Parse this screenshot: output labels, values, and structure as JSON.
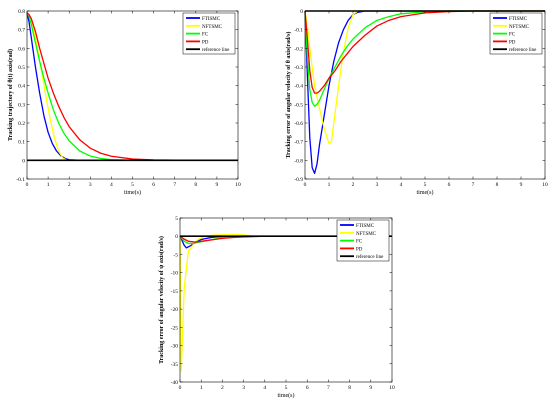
{
  "colors": {
    "FTISMC": "#0000ff",
    "NFTSMC": "#ffff00",
    "FC": "#00ff00",
    "PD": "#ff0000",
    "reference": "#000000"
  },
  "chart_data": [
    {
      "type": "line",
      "xlabel": "time(s)",
      "ylabel": "Tracking trajectory of θ(t) axis(rad)",
      "xlim": [
        0,
        10
      ],
      "ylim": [
        -0.1,
        0.8
      ],
      "xticks": [
        "0",
        "1",
        "2",
        "3",
        "4",
        "5",
        "6",
        "7",
        "8",
        "9",
        "10"
      ],
      "yticks": [
        "-0.1",
        "0",
        "0.1",
        "0.2",
        "0.3",
        "0.4",
        "0.5",
        "0.6",
        "0.7",
        "0.8"
      ],
      "legend": [
        "FTISMC",
        "NFTSMC",
        "FC",
        "PD",
        "reference line"
      ],
      "legend_position": "top-right",
      "series": [
        {
          "name": "FTISMC",
          "x": [
            0,
            0.1,
            0.2,
            0.4,
            0.6,
            0.8,
            1.0,
            1.2,
            1.4,
            1.6,
            1.8,
            2.0,
            2.5,
            3,
            10
          ],
          "y": [
            0.79,
            0.74,
            0.66,
            0.5,
            0.36,
            0.24,
            0.15,
            0.09,
            0.05,
            0.025,
            0.01,
            0.003,
            0,
            0,
            0
          ]
        },
        {
          "name": "NFTSMC",
          "x": [
            0,
            0.1,
            0.2,
            0.3,
            0.5,
            0.7,
            0.9,
            1.1,
            1.3,
            1.5,
            1.7,
            1.9,
            2.0,
            2.5,
            10
          ],
          "y": [
            0.79,
            0.78,
            0.75,
            0.71,
            0.6,
            0.47,
            0.34,
            0.22,
            0.12,
            0.05,
            0.012,
            0,
            0,
            0,
            0
          ]
        },
        {
          "name": "FC",
          "x": [
            0,
            0.1,
            0.2,
            0.4,
            0.6,
            0.8,
            1.0,
            1.25,
            1.5,
            1.75,
            2.0,
            2.5,
            3.0,
            3.5,
            4.0,
            5.0,
            6.0,
            10
          ],
          "y": [
            0.79,
            0.77,
            0.73,
            0.63,
            0.53,
            0.44,
            0.36,
            0.27,
            0.2,
            0.145,
            0.105,
            0.05,
            0.023,
            0.01,
            0.004,
            0.001,
            0,
            0
          ]
        },
        {
          "name": "PD",
          "x": [
            0,
            0.1,
            0.2,
            0.4,
            0.6,
            0.8,
            1.0,
            1.25,
            1.5,
            1.75,
            2.0,
            2.5,
            3.0,
            3.5,
            4.0,
            5.0,
            6.0,
            7.0,
            10
          ],
          "y": [
            0.79,
            0.78,
            0.76,
            0.69,
            0.6,
            0.52,
            0.44,
            0.36,
            0.29,
            0.23,
            0.18,
            0.11,
            0.065,
            0.038,
            0.022,
            0.007,
            0.002,
            0.001,
            0
          ]
        },
        {
          "name": "reference line",
          "x": [
            0,
            10
          ],
          "y": [
            0,
            0
          ]
        }
      ]
    },
    {
      "type": "line",
      "xlabel": "time(s)",
      "ylabel": "Tracking error of angular velocity of θ axis(rad/s)",
      "xlim": [
        0,
        10
      ],
      "ylim": [
        -0.9,
        0
      ],
      "xticks": [
        "0",
        "1",
        "2",
        "3",
        "4",
        "5",
        "6",
        "7",
        "8",
        "9",
        "10"
      ],
      "yticks": [
        "-0.9",
        "-0.8",
        "-0.7",
        "-0.6",
        "-0.5",
        "-0.4",
        "-0.3",
        "-0.2",
        "-0.1",
        "0"
      ],
      "legend": [
        "FTISMC",
        "NFTSMC",
        "FC",
        "PD",
        "reference line"
      ],
      "legend_position": "top-right",
      "series": [
        {
          "name": "FTISMC",
          "x": [
            0,
            0.1,
            0.2,
            0.3,
            0.4,
            0.5,
            0.6,
            0.8,
            1.0,
            1.2,
            1.4,
            1.6,
            1.8,
            2.0,
            2.2,
            2.5,
            3,
            10
          ],
          "y": [
            0,
            -0.35,
            -0.68,
            -0.84,
            -0.87,
            -0.82,
            -0.72,
            -0.56,
            -0.4,
            -0.27,
            -0.17,
            -0.1,
            -0.05,
            -0.02,
            -0.007,
            0,
            0,
            0
          ]
        },
        {
          "name": "NFTSMC",
          "x": [
            0,
            0.1,
            0.2,
            0.4,
            0.6,
            0.8,
            1.0,
            1.1,
            1.2,
            1.4,
            1.6,
            1.8,
            2.0,
            2.2,
            2.5,
            10
          ],
          "y": [
            0,
            -0.08,
            -0.2,
            -0.4,
            -0.52,
            -0.63,
            -0.71,
            -0.7,
            -0.6,
            -0.4,
            -0.22,
            -0.09,
            -0.02,
            0,
            0,
            0
          ]
        },
        {
          "name": "FC",
          "x": [
            0,
            0.1,
            0.2,
            0.3,
            0.4,
            0.5,
            0.6,
            0.8,
            1.0,
            1.25,
            1.5,
            1.75,
            2.0,
            2.5,
            3.0,
            3.5,
            4.0,
            5.0,
            6.0,
            10
          ],
          "y": [
            0,
            -0.25,
            -0.42,
            -0.49,
            -0.51,
            -0.5,
            -0.48,
            -0.42,
            -0.36,
            -0.3,
            -0.24,
            -0.19,
            -0.15,
            -0.09,
            -0.05,
            -0.03,
            -0.015,
            -0.004,
            0,
            0
          ]
        },
        {
          "name": "PD",
          "x": [
            0,
            0.1,
            0.2,
            0.3,
            0.4,
            0.5,
            0.6,
            0.8,
            1.0,
            1.25,
            1.5,
            1.75,
            2.0,
            2.5,
            3.0,
            3.5,
            4.0,
            5.0,
            6.0,
            7.0,
            10
          ],
          "y": [
            0,
            -0.15,
            -0.32,
            -0.41,
            -0.44,
            -0.44,
            -0.43,
            -0.4,
            -0.36,
            -0.32,
            -0.27,
            -0.23,
            -0.19,
            -0.13,
            -0.08,
            -0.05,
            -0.03,
            -0.01,
            -0.003,
            0,
            0
          ]
        },
        {
          "name": "reference line",
          "x": [
            0,
            10
          ],
          "y": [
            0,
            0
          ]
        }
      ]
    },
    {
      "type": "line",
      "xlabel": "time(s)",
      "ylabel": "Tracking error of angular velocity of ψ axis(rad/s)",
      "xlim": [
        0,
        10
      ],
      "ylim": [
        -40,
        5
      ],
      "xticks": [
        "0",
        "1",
        "2",
        "3",
        "4",
        "5",
        "6",
        "7",
        "8",
        "9",
        "10"
      ],
      "yticks": [
        "-40",
        "-35",
        "-30",
        "-25",
        "-20",
        "-15",
        "-10",
        "-5",
        "0",
        "5"
      ],
      "legend": [
        "FTISMC",
        "NFTSMC",
        "FC",
        "PD",
        "reference line"
      ],
      "legend_position": "top-right",
      "series": [
        {
          "name": "FTISMC",
          "x": [
            0,
            0.1,
            0.2,
            0.3,
            0.5,
            0.8,
            1.0,
            1.5,
            2.0,
            3.0,
            10
          ],
          "y": [
            0,
            -1.2,
            -2.5,
            -3.2,
            -2.6,
            -1.5,
            -0.9,
            -0.3,
            -0.1,
            0,
            0
          ]
        },
        {
          "name": "NFTSMC",
          "x": [
            0,
            0.03,
            0.06,
            0.1,
            0.2,
            0.4,
            0.8,
            1.2,
            1.6,
            2.0,
            2.5,
            3.0,
            3.3,
            3.6,
            10
          ],
          "y": [
            0,
            -22,
            -37,
            -30,
            -14,
            -4,
            -1,
            0,
            0.3,
            0.4,
            0.5,
            0.4,
            0.1,
            0,
            0
          ]
        },
        {
          "name": "FC",
          "x": [
            0,
            0.2,
            0.4,
            0.6,
            1.0,
            1.5,
            2.0,
            2.5,
            3.0,
            3.5,
            10
          ],
          "y": [
            0,
            -1.4,
            -2.0,
            -2.0,
            -1.5,
            -0.9,
            -0.5,
            -0.3,
            -0.1,
            0,
            0
          ]
        },
        {
          "name": "PD",
          "x": [
            0,
            0.2,
            0.4,
            0.7,
            1.0,
            1.5,
            2.0,
            2.5,
            3.0,
            3.5,
            4.0,
            10
          ],
          "y": [
            0,
            -0.8,
            -1.4,
            -1.6,
            -1.4,
            -1.0,
            -0.6,
            -0.35,
            -0.2,
            -0.1,
            0,
            0
          ]
        },
        {
          "name": "reference line",
          "x": [
            0,
            10
          ],
          "y": [
            0,
            0
          ]
        }
      ]
    }
  ]
}
